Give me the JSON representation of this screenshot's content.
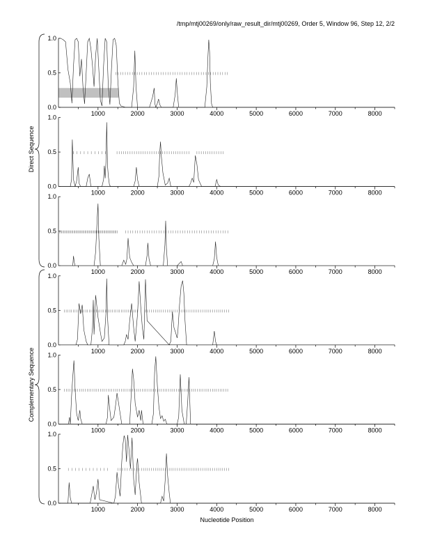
{
  "header": {
    "title": "/tmp/mtj00269/only/raw_result_dir/mtj00269, Order 5, Window 96, Step 12, 2/2"
  },
  "labels": {
    "xlabel": "Nucleotide Position",
    "group_direct": "Direct Sequence",
    "group_complementary": "Complementary Sequence"
  },
  "chart_data": [
    {
      "type": "line",
      "group": "Direct Sequence",
      "frame": 1,
      "xlim": [
        0,
        8500
      ],
      "ylim": [
        0,
        1.0
      ],
      "xticks": [
        1000,
        2000,
        3000,
        4000,
        5000,
        6000,
        7000,
        8000
      ],
      "yticks": [
        0.0,
        0.5,
        1.0
      ],
      "highlight_region": {
        "x0": 0,
        "x1": 1520,
        "y0": 0.14,
        "y1": 0.28,
        "color": "#c0c0c0"
      },
      "hit_marks": [
        {
          "from": 1450,
          "to": 4300,
          "y": 0.49,
          "spacing": 60
        }
      ],
      "x": [
        0,
        60,
        120,
        180,
        240,
        300,
        340,
        380,
        420,
        460,
        500,
        540,
        580,
        620,
        660,
        700,
        740,
        780,
        820,
        860,
        900,
        940,
        980,
        1020,
        1060,
        1100,
        1140,
        1180,
        1220,
        1260,
        1300,
        1340,
        1380,
        1420,
        1460,
        1500,
        1540,
        1580,
        1700,
        1850,
        1900,
        1930,
        1960,
        2000,
        2300,
        2380,
        2420,
        2440,
        2460,
        2500,
        2530,
        2560,
        2600,
        2900,
        2950,
        2980,
        3010,
        3040,
        3700,
        3750,
        3780,
        3800,
        3820,
        3840,
        3870,
        3900,
        8500
      ],
      "y": [
        1.0,
        1.0,
        0.98,
        0.95,
        0.55,
        0.35,
        0.06,
        0.6,
        0.98,
        1.0,
        0.95,
        0.45,
        0.7,
        0.3,
        0.05,
        0.5,
        0.95,
        1.0,
        0.85,
        0.6,
        0.3,
        0.75,
        1.0,
        0.55,
        0.1,
        0.02,
        0.6,
        1.0,
        0.95,
        0.3,
        0.04,
        0.55,
        0.98,
        1.0,
        0.9,
        0.4,
        0.06,
        0.02,
        0.0,
        0.0,
        0.3,
        0.82,
        0.3,
        0.0,
        0.0,
        0.15,
        0.28,
        0.05,
        0.0,
        0.06,
        0.12,
        0.04,
        0.0,
        0.0,
        0.18,
        0.42,
        0.18,
        0.0,
        0.0,
        0.3,
        0.75,
        0.98,
        0.8,
        0.35,
        0.05,
        0.0,
        0.0
      ]
    },
    {
      "type": "line",
      "group": "Direct Sequence",
      "frame": 2,
      "xlim": [
        0,
        8500
      ],
      "ylim": [
        0,
        1.0
      ],
      "xticks": [
        1000,
        2000,
        3000,
        4000,
        5000,
        6000,
        7000,
        8000
      ],
      "yticks": [
        0.0,
        0.5,
        1.0
      ],
      "hit_marks": [
        {
          "from": 380,
          "to": 1250,
          "y": 0.49,
          "spacing": 90
        },
        {
          "from": 1480,
          "to": 3300,
          "y": 0.49,
          "spacing": 55
        },
        {
          "from": 3500,
          "to": 4200,
          "y": 0.49,
          "spacing": 55
        }
      ],
      "x": [
        0,
        300,
        330,
        350,
        380,
        420,
        460,
        500,
        520,
        560,
        600,
        700,
        740,
        780,
        820,
        1100,
        1140,
        1160,
        1180,
        1200,
        1220,
        1240,
        1260,
        1290,
        1320,
        1900,
        1940,
        1970,
        2000,
        2040,
        2500,
        2540,
        2560,
        2580,
        2600,
        2640,
        2700,
        2760,
        2800,
        2840,
        3300,
        3340,
        3380,
        3420,
        3460,
        3500,
        3540,
        3580,
        3620,
        3960,
        4000,
        4040,
        4100,
        8500
      ],
      "y": [
        0.0,
        0.0,
        0.1,
        0.68,
        0.1,
        0.0,
        0.08,
        0.28,
        0.05,
        0.0,
        0.0,
        0.0,
        0.12,
        0.18,
        0.0,
        0.0,
        0.1,
        0.3,
        0.12,
        0.35,
        0.93,
        0.3,
        0.15,
        0.02,
        0.0,
        0.0,
        0.08,
        0.28,
        0.1,
        0.0,
        0.0,
        0.15,
        0.5,
        0.65,
        0.45,
        0.2,
        0.02,
        0.05,
        0.12,
        0.0,
        0.0,
        0.05,
        0.12,
        0.06,
        0.45,
        0.32,
        0.1,
        0.05,
        0.0,
        0.0,
        0.1,
        0.02,
        0.0,
        0.0
      ]
    },
    {
      "type": "line",
      "group": "Direct Sequence",
      "frame": 3,
      "xlim": [
        0,
        8500
      ],
      "ylim": [
        0,
        1.0
      ],
      "xticks": [
        1000,
        2000,
        3000,
        4000,
        5000,
        6000,
        7000,
        8000
      ],
      "yticks": [
        0.0,
        0.5,
        1.0
      ],
      "hit_marks": [
        {
          "from": 0,
          "to": 1500,
          "y": 0.49,
          "spacing": 28
        },
        {
          "from": 1700,
          "to": 4300,
          "y": 0.49,
          "spacing": 60
        }
      ],
      "x": [
        0,
        360,
        380,
        400,
        420,
        900,
        940,
        980,
        1000,
        1020,
        1060,
        1600,
        1650,
        1700,
        1730,
        1760,
        1800,
        1850,
        1900,
        2200,
        2240,
        2260,
        2290,
        2330,
        2650,
        2690,
        2710,
        2730,
        2760,
        3000,
        3100,
        3140,
        3900,
        3940,
        3970,
        4000,
        4040,
        8500
      ],
      "y": [
        0.0,
        0.0,
        0.14,
        0.05,
        0.0,
        0.0,
        0.2,
        0.7,
        0.9,
        0.4,
        0.0,
        0.0,
        0.08,
        0.02,
        0.1,
        0.4,
        0.12,
        0.05,
        0.0,
        0.0,
        0.15,
        0.33,
        0.1,
        0.0,
        0.0,
        0.3,
        0.65,
        0.25,
        0.0,
        0.0,
        0.06,
        0.0,
        0.0,
        0.1,
        0.35,
        0.12,
        0.0,
        0.0
      ]
    },
    {
      "type": "line",
      "group": "Complementary Sequence",
      "frame": 1,
      "xlim": [
        0,
        8500
      ],
      "ylim": [
        0,
        1.0
      ],
      "xticks": [
        1000,
        2000,
        3000,
        4000,
        5000,
        6000,
        7000,
        8000
      ],
      "yticks": [
        0.0,
        0.5,
        1.0
      ],
      "hit_marks": [
        {
          "from": 150,
          "to": 2000,
          "y": 0.49,
          "spacing": 45
        },
        {
          "from": 2200,
          "to": 4300,
          "y": 0.49,
          "spacing": 50
        }
      ],
      "x": [
        0,
        440,
        480,
        520,
        560,
        600,
        640,
        700,
        740,
        820,
        860,
        880,
        900,
        940,
        1000,
        1060,
        1100,
        1160,
        1200,
        1220,
        1240,
        1280,
        1650,
        1690,
        1720,
        1760,
        1800,
        1850,
        1900,
        1940,
        2000,
        2040,
        2080,
        2120,
        2160,
        2200,
        2240,
        2800,
        2840,
        2880,
        2920,
        2960,
        3000,
        3020,
        3060,
        3100,
        3140,
        3170,
        3200,
        3240,
        3900,
        3940,
        3970,
        4000,
        8500
      ],
      "y": [
        0.0,
        0.0,
        0.08,
        0.6,
        0.45,
        0.58,
        0.22,
        0.05,
        0.0,
        0.0,
        0.25,
        0.65,
        0.15,
        0.72,
        0.4,
        0.18,
        0.05,
        0.1,
        0.45,
        0.96,
        0.4,
        0.0,
        0.0,
        0.05,
        0.15,
        0.08,
        0.35,
        0.6,
        0.25,
        0.05,
        0.45,
        0.92,
        0.55,
        0.25,
        0.08,
        0.95,
        0.35,
        0.0,
        0.05,
        0.48,
        0.25,
        0.18,
        0.1,
        0.2,
        0.58,
        0.85,
        0.93,
        0.75,
        0.35,
        0.0,
        0.0,
        0.2,
        0.05,
        0.0,
        0.0
      ]
    },
    {
      "type": "line",
      "group": "Complementary Sequence",
      "frame": 2,
      "xlim": [
        0,
        8500
      ],
      "ylim": [
        0,
        1.0
      ],
      "xticks": [
        1000,
        2000,
        3000,
        4000,
        5000,
        6000,
        7000,
        8000
      ],
      "yticks": [
        0.0,
        0.5,
        1.0
      ],
      "hit_marks": [
        {
          "from": 150,
          "to": 4300,
          "y": 0.49,
          "spacing": 48
        }
      ],
      "x": [
        0,
        250,
        280,
        300,
        330,
        360,
        390,
        420,
        460,
        500,
        540,
        560,
        600,
        1200,
        1240,
        1260,
        1290,
        1330,
        1400,
        1440,
        1480,
        1520,
        1560,
        1600,
        1800,
        1840,
        1870,
        1900,
        1940,
        2000,
        2040,
        2080,
        2100,
        2140,
        2360,
        2400,
        2430,
        2460,
        2500,
        2540,
        2580,
        2620,
        2660,
        2700,
        2740,
        3000,
        3040,
        3080,
        3120,
        3180,
        3230,
        3270,
        3300,
        3340,
        8500
      ],
      "y": [
        0.0,
        0.0,
        0.1,
        0.0,
        0.4,
        0.68,
        0.92,
        0.5,
        0.15,
        0.05,
        0.2,
        0.08,
        0.0,
        0.0,
        0.1,
        0.42,
        0.25,
        0.05,
        0.1,
        0.25,
        0.45,
        0.3,
        0.15,
        0.0,
        0.0,
        0.45,
        0.8,
        0.65,
        0.3,
        0.1,
        0.2,
        0.05,
        0.2,
        0.0,
        0.0,
        0.15,
        0.75,
        0.98,
        0.55,
        0.25,
        0.08,
        0.12,
        0.04,
        0.07,
        0.0,
        0.0,
        0.1,
        0.72,
        0.2,
        0.0,
        0.0,
        0.35,
        0.68,
        0.0,
        0.0
      ]
    },
    {
      "type": "line",
      "group": "Complementary Sequence",
      "frame": 3,
      "xlim": [
        0,
        8500
      ],
      "ylim": [
        0,
        1.0
      ],
      "xticks": [
        1000,
        2000,
        3000,
        4000,
        5000,
        6000,
        7000,
        8000
      ],
      "yticks": [
        0.0,
        0.5,
        1.0
      ],
      "hit_marks": [
        {
          "from": 250,
          "to": 1300,
          "y": 0.49,
          "spacing": 90
        },
        {
          "from": 1500,
          "to": 2150,
          "y": 0.49,
          "spacing": 60
        },
        {
          "from": 2150,
          "to": 4300,
          "y": 0.49,
          "spacing": 50
        }
      ],
      "x": [
        0,
        240,
        270,
        300,
        330,
        800,
        840,
        880,
        920,
        960,
        1000,
        1040,
        1400,
        1440,
        1480,
        1520,
        1560,
        1600,
        1630,
        1660,
        1690,
        1720,
        1750,
        1780,
        1820,
        1860,
        1900,
        1940,
        1980,
        2000,
        2040,
        2100,
        2580,
        2620,
        2660,
        2700,
        2730,
        2760,
        2800,
        2830,
        8500
      ],
      "y": [
        0.0,
        0.0,
        0.3,
        0.08,
        0.0,
        0.0,
        0.12,
        0.25,
        0.05,
        0.15,
        0.35,
        0.05,
        0.0,
        0.1,
        0.45,
        0.25,
        0.1,
        0.6,
        0.85,
        0.98,
        0.92,
        0.6,
        0.99,
        0.8,
        0.5,
        0.95,
        0.35,
        0.12,
        0.55,
        0.65,
        0.3,
        0.0,
        0.0,
        0.1,
        0.03,
        0.35,
        0.72,
        0.4,
        0.15,
        0.0,
        0.0
      ]
    }
  ]
}
